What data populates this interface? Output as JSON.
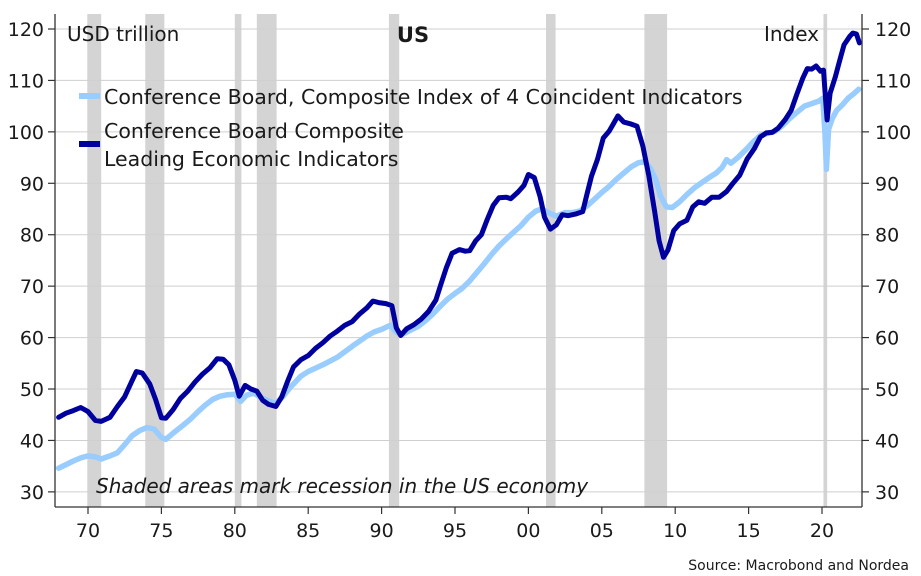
{
  "chart_data": {
    "type": "line",
    "title": "US",
    "ylabel_left": "USD trillion",
    "ylabel_right": "Index",
    "xlabel": "",
    "ylim": [
      27,
      122
    ],
    "xlim": [
      1967.75,
      2022.7
    ],
    "grid": true,
    "y_ticks": [
      30,
      40,
      50,
      60,
      70,
      80,
      90,
      100,
      110,
      120
    ],
    "y_tick_labels": [
      "30",
      "40",
      "50",
      "60",
      "70",
      "80",
      "90",
      "100",
      "110",
      "120"
    ],
    "x_ticks": [
      1970,
      1975,
      1980,
      1985,
      1990,
      1995,
      2000,
      2005,
      2010,
      2015,
      2020
    ],
    "x_tick_labels": [
      "70",
      "75",
      "80",
      "85",
      "90",
      "95",
      "00",
      "05",
      "10",
      "15",
      "20"
    ],
    "legend_placement": "top-left",
    "annotation": "Shaded areas mark recession in the US economy",
    "source": "Source: Macrobond and Nordea",
    "recessions": [
      [
        1969.95,
        1970.9
      ],
      [
        1973.9,
        1975.2
      ],
      [
        1980.0,
        1980.45
      ],
      [
        1981.5,
        1982.85
      ],
      [
        1990.5,
        1991.2
      ],
      [
        2001.2,
        2001.85
      ],
      [
        2007.9,
        2009.45
      ],
      [
        2020.1,
        2020.35
      ]
    ],
    "series": [
      {
        "name": "Conference Board, Composite Index of 4 Coincident Indicators",
        "color": "#99ccff",
        "points": [
          [
            1968.0,
            34.6
          ],
          [
            1968.5,
            35.3
          ],
          [
            1969.0,
            36.0
          ],
          [
            1969.5,
            36.6
          ],
          [
            1970.0,
            37.0
          ],
          [
            1970.5,
            36.8
          ],
          [
            1970.9,
            36.4
          ],
          [
            1971.5,
            37.0
          ],
          [
            1972.0,
            37.6
          ],
          [
            1972.5,
            39.2
          ],
          [
            1973.0,
            40.9
          ],
          [
            1973.5,
            41.9
          ],
          [
            1974.0,
            42.5
          ],
          [
            1974.5,
            42.2
          ],
          [
            1975.0,
            40.6
          ],
          [
            1975.3,
            40.2
          ],
          [
            1975.8,
            41.4
          ],
          [
            1976.5,
            43.0
          ],
          [
            1977.0,
            44.2
          ],
          [
            1977.5,
            45.6
          ],
          [
            1978.0,
            46.9
          ],
          [
            1978.5,
            48.0
          ],
          [
            1979.0,
            48.6
          ],
          [
            1979.5,
            48.9
          ],
          [
            1980.0,
            49.0
          ],
          [
            1980.4,
            47.6
          ],
          [
            1980.8,
            48.8
          ],
          [
            1981.3,
            49.2
          ],
          [
            1981.8,
            48.3
          ],
          [
            1982.3,
            47.7
          ],
          [
            1982.8,
            47.1
          ],
          [
            1983.3,
            48.6
          ],
          [
            1983.8,
            50.4
          ],
          [
            1984.5,
            52.5
          ],
          [
            1985.0,
            53.4
          ],
          [
            1986.0,
            54.7
          ],
          [
            1987.0,
            56.2
          ],
          [
            1988.0,
            58.3
          ],
          [
            1989.0,
            60.3
          ],
          [
            1989.5,
            61.1
          ],
          [
            1990.0,
            61.6
          ],
          [
            1990.6,
            62.4
          ],
          [
            1991.0,
            61.0
          ],
          [
            1991.4,
            60.6
          ],
          [
            1992.0,
            61.5
          ],
          [
            1992.5,
            62.2
          ],
          [
            1993.0,
            63.3
          ],
          [
            1993.5,
            64.6
          ],
          [
            1994.0,
            66.1
          ],
          [
            1994.5,
            67.5
          ],
          [
            1995.0,
            68.6
          ],
          [
            1995.5,
            69.6
          ],
          [
            1996.0,
            71.0
          ],
          [
            1996.5,
            72.7
          ],
          [
            1997.0,
            74.4
          ],
          [
            1997.5,
            76.2
          ],
          [
            1998.0,
            77.8
          ],
          [
            1998.5,
            79.2
          ],
          [
            1999.0,
            80.5
          ],
          [
            1999.5,
            81.8
          ],
          [
            2000.0,
            83.4
          ],
          [
            2000.5,
            84.6
          ],
          [
            2000.9,
            85.0
          ],
          [
            2001.5,
            84.1
          ],
          [
            2001.9,
            83.6
          ],
          [
            2002.5,
            84.3
          ],
          [
            2003.0,
            84.3
          ],
          [
            2003.5,
            84.6
          ],
          [
            2004.0,
            85.6
          ],
          [
            2004.5,
            86.9
          ],
          [
            2005.0,
            88.2
          ],
          [
            2005.5,
            89.4
          ],
          [
            2006.0,
            90.8
          ],
          [
            2006.5,
            92.0
          ],
          [
            2007.0,
            93.2
          ],
          [
            2007.5,
            94.0
          ],
          [
            2007.9,
            94.2
          ],
          [
            2008.3,
            93.0
          ],
          [
            2008.7,
            90.5
          ],
          [
            2009.0,
            87.5
          ],
          [
            2009.4,
            85.4
          ],
          [
            2009.8,
            85.3
          ],
          [
            2010.3,
            86.4
          ],
          [
            2010.8,
            87.8
          ],
          [
            2011.3,
            89.1
          ],
          [
            2011.8,
            90.1
          ],
          [
            2012.3,
            91.1
          ],
          [
            2012.8,
            92.0
          ],
          [
            2013.2,
            93.1
          ],
          [
            2013.5,
            94.6
          ],
          [
            2013.8,
            93.9
          ],
          [
            2014.3,
            95.1
          ],
          [
            2014.8,
            96.5
          ],
          [
            2015.3,
            98.0
          ],
          [
            2015.8,
            99.3
          ],
          [
            2016.3,
            99.7
          ],
          [
            2016.8,
            100.1
          ],
          [
            2017.3,
            101.2
          ],
          [
            2017.8,
            102.6
          ],
          [
            2018.3,
            103.8
          ],
          [
            2018.8,
            105.0
          ],
          [
            2019.3,
            105.5
          ],
          [
            2019.8,
            106.0
          ],
          [
            2020.05,
            106.5
          ],
          [
            2020.2,
            100.0
          ],
          [
            2020.3,
            92.7
          ],
          [
            2020.45,
            100.5
          ],
          [
            2020.7,
            102.6
          ],
          [
            2021.0,
            104.2
          ],
          [
            2021.4,
            105.3
          ],
          [
            2021.8,
            106.6
          ],
          [
            2022.2,
            107.5
          ],
          [
            2022.5,
            108.3
          ]
        ]
      },
      {
        "name": "Conference Board Composite Leading Economic Indicators",
        "color": "#00009f",
        "points": [
          [
            1968.0,
            44.5
          ],
          [
            1968.5,
            45.3
          ],
          [
            1969.0,
            45.8
          ],
          [
            1969.5,
            46.4
          ],
          [
            1970.0,
            45.6
          ],
          [
            1970.5,
            43.9
          ],
          [
            1970.9,
            43.7
          ],
          [
            1971.5,
            44.5
          ],
          [
            1972.0,
            46.6
          ],
          [
            1972.5,
            48.5
          ],
          [
            1973.0,
            51.6
          ],
          [
            1973.3,
            53.4
          ],
          [
            1973.7,
            53.1
          ],
          [
            1974.2,
            51.0
          ],
          [
            1974.6,
            48.0
          ],
          [
            1975.0,
            44.4
          ],
          [
            1975.3,
            44.3
          ],
          [
            1975.8,
            46.0
          ],
          [
            1976.3,
            48.2
          ],
          [
            1976.8,
            49.6
          ],
          [
            1977.3,
            51.4
          ],
          [
            1977.8,
            52.9
          ],
          [
            1978.3,
            54.1
          ],
          [
            1978.8,
            55.9
          ],
          [
            1979.2,
            55.8
          ],
          [
            1979.6,
            54.7
          ],
          [
            1980.0,
            51.7
          ],
          [
            1980.3,
            48.6
          ],
          [
            1980.7,
            50.7
          ],
          [
            1981.1,
            50.0
          ],
          [
            1981.5,
            49.6
          ],
          [
            1981.9,
            47.8
          ],
          [
            1982.3,
            47.0
          ],
          [
            1982.8,
            46.6
          ],
          [
            1983.2,
            48.5
          ],
          [
            1983.6,
            51.5
          ],
          [
            1984.0,
            54.3
          ],
          [
            1984.5,
            55.7
          ],
          [
            1985.0,
            56.5
          ],
          [
            1985.5,
            57.9
          ],
          [
            1986.0,
            59.0
          ],
          [
            1986.5,
            60.3
          ],
          [
            1987.0,
            61.3
          ],
          [
            1987.5,
            62.4
          ],
          [
            1988.0,
            63.1
          ],
          [
            1988.5,
            64.6
          ],
          [
            1989.0,
            65.8
          ],
          [
            1989.4,
            67.1
          ],
          [
            1989.8,
            66.8
          ],
          [
            1990.3,
            66.6
          ],
          [
            1990.7,
            66.2
          ],
          [
            1991.0,
            61.9
          ],
          [
            1991.3,
            60.4
          ],
          [
            1991.7,
            61.7
          ],
          [
            1992.2,
            62.5
          ],
          [
            1992.7,
            63.6
          ],
          [
            1993.2,
            65.1
          ],
          [
            1993.7,
            67.3
          ],
          [
            1994.0,
            70.0
          ],
          [
            1994.4,
            73.5
          ],
          [
            1994.8,
            76.4
          ],
          [
            1995.3,
            77.1
          ],
          [
            1995.7,
            76.8
          ],
          [
            1996.0,
            76.9
          ],
          [
            1996.4,
            78.8
          ],
          [
            1996.8,
            80.0
          ],
          [
            1997.2,
            83.0
          ],
          [
            1997.6,
            85.7
          ],
          [
            1998.0,
            87.2
          ],
          [
            1998.5,
            87.3
          ],
          [
            1998.8,
            87.0
          ],
          [
            1999.3,
            88.3
          ],
          [
            1999.7,
            89.6
          ],
          [
            2000.0,
            91.7
          ],
          [
            2000.4,
            91.1
          ],
          [
            2000.8,
            87.4
          ],
          [
            2001.1,
            83.4
          ],
          [
            2001.5,
            81.1
          ],
          [
            2001.9,
            81.9
          ],
          [
            2002.3,
            83.9
          ],
          [
            2002.7,
            83.7
          ],
          [
            2003.2,
            84.0
          ],
          [
            2003.7,
            84.5
          ],
          [
            2004.0,
            88.0
          ],
          [
            2004.3,
            91.4
          ],
          [
            2004.7,
            94.6
          ],
          [
            2005.1,
            98.8
          ],
          [
            2005.5,
            100.1
          ],
          [
            2005.8,
            101.6
          ],
          [
            2006.1,
            103.1
          ],
          [
            2006.5,
            101.9
          ],
          [
            2007.0,
            101.5
          ],
          [
            2007.4,
            101.1
          ],
          [
            2007.8,
            97.2
          ],
          [
            2008.2,
            91.5
          ],
          [
            2008.6,
            84.6
          ],
          [
            2008.9,
            78.8
          ],
          [
            2009.2,
            75.6
          ],
          [
            2009.5,
            77.0
          ],
          [
            2009.9,
            80.8
          ],
          [
            2010.3,
            82.1
          ],
          [
            2010.8,
            82.8
          ],
          [
            2011.2,
            85.4
          ],
          [
            2011.6,
            86.4
          ],
          [
            2012.0,
            86.1
          ],
          [
            2012.5,
            87.3
          ],
          [
            2013.0,
            87.3
          ],
          [
            2013.5,
            88.4
          ],
          [
            2013.9,
            89.9
          ],
          [
            2014.4,
            91.6
          ],
          [
            2014.9,
            94.7
          ],
          [
            2015.4,
            96.8
          ],
          [
            2015.8,
            99.0
          ],
          [
            2016.2,
            99.8
          ],
          [
            2016.6,
            99.9
          ],
          [
            2017.0,
            100.7
          ],
          [
            2017.5,
            102.4
          ],
          [
            2017.9,
            104.2
          ],
          [
            2018.3,
            107.4
          ],
          [
            2018.7,
            110.5
          ],
          [
            2019.0,
            112.3
          ],
          [
            2019.3,
            112.2
          ],
          [
            2019.6,
            112.8
          ],
          [
            2019.9,
            111.8
          ],
          [
            2020.1,
            112.0
          ],
          [
            2020.25,
            106.0
          ],
          [
            2020.35,
            102.3
          ],
          [
            2020.55,
            107.5
          ],
          [
            2020.9,
            110.6
          ],
          [
            2021.2,
            113.8
          ],
          [
            2021.5,
            116.9
          ],
          [
            2021.9,
            118.6
          ],
          [
            2022.1,
            119.2
          ],
          [
            2022.35,
            119.0
          ],
          [
            2022.55,
            117.3
          ]
        ]
      }
    ]
  }
}
